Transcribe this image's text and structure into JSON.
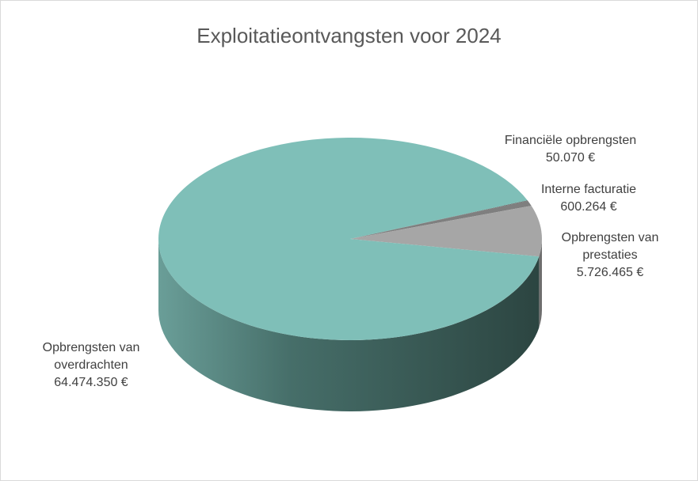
{
  "chart_data": {
    "type": "pie",
    "title": "Exploitatieontvangsten voor 2024",
    "categories": [
      "Financiële opbrengsten",
      "Interne facturatie",
      "Opbrengsten van prestaties",
      "Opbrengsten van overdrachten"
    ],
    "values": [
      50070,
      600264,
      5726465,
      64474350
    ],
    "value_labels": [
      "50.070 €",
      "600.264 €",
      "5.726.465 €",
      "64.474.350 €"
    ],
    "colors": [
      "#5a5a5a",
      "#7f7f7f",
      "#a6a6a6",
      "#7fbfb8"
    ]
  }
}
